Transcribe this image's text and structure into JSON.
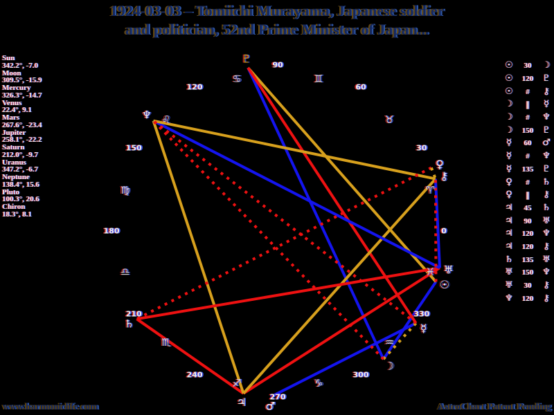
{
  "title": {
    "line1": "1924-03-03 – Tomiichi Murayama, Japanese soldier",
    "line2": "and politician, 52nd Prime Minister of Japan..."
  },
  "footer": {
    "site": "www.harmoniclife.com",
    "brand": "AstroChart Patent Pending"
  },
  "colors": {
    "background": "#000000",
    "title_text": "#16295e",
    "panel_text": "#ededed",
    "gold": "#d7a01d",
    "red": "#ee1111",
    "blue": "#1414ee",
    "sign_glyph": "#d6d6d6",
    "degree_label": "#f0f0f0"
  },
  "chart_data": {
    "type": "natal-wheel",
    "description": "Astrological natal chart: zodiac longitudes in degrees, 0° at right, counterclockwise; planets on rim; aspect lines between planets; dotted lines are declination parallels (gold) / contraparallels (red)",
    "planets": [
      {
        "name": "Sun",
        "glyph": "☉",
        "longitude": 342.2,
        "panel_value": "342.2°, -7.0",
        "glyph_color": "#f0f0f0"
      },
      {
        "name": "Moon",
        "glyph": "☽",
        "longitude": 309.5,
        "panel_value": "309.5°, -15.9",
        "glyph_color": "#f0f0f0"
      },
      {
        "name": "Mercury",
        "glyph": "☿",
        "longitude": 326.3,
        "panel_value": "326.3°, -14.7",
        "glyph_color": "#f0f0f0"
      },
      {
        "name": "Venus",
        "glyph": "♀",
        "longitude": 22.4,
        "panel_value": "22.4°, 9.1",
        "glyph_color": "#f0f0f0"
      },
      {
        "name": "Mars",
        "glyph": "♂",
        "longitude": 267.6,
        "panel_value": "267.6°, -23.4",
        "glyph_color": "#f0f0f0"
      },
      {
        "name": "Jupiter",
        "glyph": "♃",
        "longitude": 258.1,
        "panel_value": "258.1°, -22.2",
        "glyph_color": "#f0f0f0"
      },
      {
        "name": "Saturn",
        "glyph": "♄",
        "longitude": 212.0,
        "panel_value": "212.0°, -9.7",
        "glyph_color": "#f0f0f0"
      },
      {
        "name": "Uranus",
        "glyph": "♅",
        "longitude": 347.2,
        "panel_value": "347.2°, -6.7",
        "glyph_color": "#f0f0f0"
      },
      {
        "name": "Neptune",
        "glyph": "♆",
        "longitude": 138.4,
        "panel_value": "138.4°, 15.6",
        "glyph_color": "#f0f0f0"
      },
      {
        "name": "Pluto",
        "glyph": "♇",
        "longitude": 100.3,
        "panel_value": "100.3°, 20.6",
        "glyph_color": "#d7a01d"
      },
      {
        "name": "Chiron",
        "glyph": "⚷",
        "longitude": 18.3,
        "panel_value": "18.3°, 8.1",
        "glyph_color": "#f0f0f0"
      }
    ],
    "signs": [
      {
        "name": "Aries",
        "glyph": "♈",
        "mid_degree": 15
      },
      {
        "name": "Taurus",
        "glyph": "♉",
        "mid_degree": 45
      },
      {
        "name": "Gemini",
        "glyph": "♊",
        "mid_degree": 75
      },
      {
        "name": "Cancer",
        "glyph": "♋",
        "mid_degree": 105
      },
      {
        "name": "Leo",
        "glyph": "♌",
        "mid_degree": 135
      },
      {
        "name": "Virgo",
        "glyph": "♍",
        "mid_degree": 165
      },
      {
        "name": "Libra",
        "glyph": "♎",
        "mid_degree": 195
      },
      {
        "name": "Scorpio",
        "glyph": "♏",
        "mid_degree": 225
      },
      {
        "name": "Sagittarius",
        "glyph": "♐",
        "mid_degree": 255
      },
      {
        "name": "Capricorn",
        "glyph": "♑",
        "mid_degree": 285
      },
      {
        "name": "Aquarius",
        "glyph": "♒",
        "mid_degree": 315
      },
      {
        "name": "Pisces",
        "glyph": "♓",
        "mid_degree": 345
      }
    ],
    "degree_labels": [
      0,
      30,
      60,
      90,
      120,
      150,
      180,
      210,
      240,
      270,
      300,
      330
    ],
    "aspects": [
      {
        "a": "Sun",
        "symbol": "30",
        "b": "Moon",
        "color": "blue",
        "style": "solid"
      },
      {
        "a": "Sun",
        "symbol": "120",
        "b": "Pluto",
        "color": "gold",
        "style": "solid"
      },
      {
        "a": "Sun",
        "symbol": "#",
        "b": "Chiron",
        "color": "red",
        "style": "dotted"
      },
      {
        "a": "Moon",
        "symbol": "∥",
        "b": "Mercury",
        "color": "gold",
        "style": "dotted"
      },
      {
        "a": "Moon",
        "symbol": "#",
        "b": "Neptune",
        "color": "red",
        "style": "dotted"
      },
      {
        "a": "Moon",
        "symbol": "150",
        "b": "Pluto",
        "color": "blue",
        "style": "solid"
      },
      {
        "a": "Mercury",
        "symbol": "60",
        "b": "Mars",
        "color": "blue",
        "style": "solid"
      },
      {
        "a": "Mercury",
        "symbol": "#",
        "b": "Neptune",
        "color": "red",
        "style": "dotted"
      },
      {
        "a": "Mercury",
        "symbol": "135",
        "b": "Pluto",
        "color": "red",
        "style": "solid"
      },
      {
        "a": "Venus",
        "symbol": "#",
        "b": "Saturn",
        "color": "red",
        "style": "dotted"
      },
      {
        "a": "Venus",
        "symbol": "∥",
        "b": "Chiron",
        "color": "gold",
        "style": "dotted"
      },
      {
        "a": "Jupiter",
        "symbol": "45",
        "b": "Saturn",
        "color": "red",
        "style": "solid"
      },
      {
        "a": "Jupiter",
        "symbol": "90",
        "b": "Uranus",
        "color": "red",
        "style": "solid"
      },
      {
        "a": "Jupiter",
        "symbol": "120",
        "b": "Neptune",
        "color": "gold",
        "style": "solid"
      },
      {
        "a": "Jupiter",
        "symbol": "120",
        "b": "Chiron",
        "color": "gold",
        "style": "solid"
      },
      {
        "a": "Saturn",
        "symbol": "135",
        "b": "Uranus",
        "color": "red",
        "style": "solid"
      },
      {
        "a": "Uranus",
        "symbol": "150",
        "b": "Neptune",
        "color": "blue",
        "style": "solid"
      },
      {
        "a": "Uranus",
        "symbol": "30",
        "b": "Chiron",
        "color": "blue",
        "style": "solid"
      },
      {
        "a": "Neptune",
        "symbol": "120",
        "b": "Chiron",
        "color": "gold",
        "style": "solid"
      }
    ]
  }
}
